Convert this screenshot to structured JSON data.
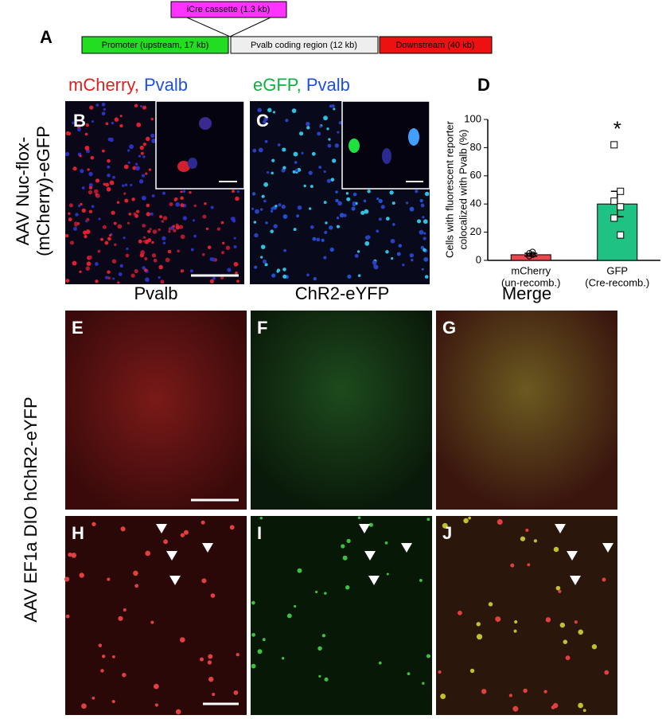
{
  "panel_a": {
    "label": "A",
    "cassette": "iCre cassette (1.3 kb)",
    "segments": [
      "Promoter (upstream, 17 kb)",
      "Pvalb coding region (12 kb)",
      "Downstream (40 kb)"
    ]
  },
  "row1": {
    "label_lines": [
      "AAV Nuc-flox-",
      "(mCherry)-eGFP"
    ],
    "panels": [
      {
        "label": "B",
        "title_a": "mCherry,",
        "title_b": "Pvalb"
      },
      {
        "label": "C",
        "title_a": "eGFP,",
        "title_b": "Pvalb"
      }
    ]
  },
  "row2": {
    "label": "AAV EF1a DIO hChR2-eYFP",
    "columns": [
      "Pvalb",
      "ChR2-eYFP",
      "Merge"
    ],
    "panels_top": [
      "E",
      "F",
      "G"
    ],
    "panels_bottom": [
      "H",
      "I",
      "J"
    ]
  },
  "chart_data": {
    "type": "bar",
    "label": "D",
    "ylabel_lines": [
      "Cells with fluorescent reporter",
      "colocalized with Pvalb (%)"
    ],
    "categories": [
      "mCherry",
      "GFP"
    ],
    "sublabels": [
      "(un-recomb.)",
      "(Cre-recomb.)"
    ],
    "values": [
      4,
      40
    ],
    "errors": [
      1,
      9
    ],
    "colors": [
      "#e8474f",
      "#1fc283"
    ],
    "points": [
      [
        3,
        4,
        5,
        6
      ],
      [
        82,
        49,
        42,
        38,
        30,
        18
      ]
    ],
    "annotation": "*",
    "ylim": [
      0,
      100
    ],
    "yticks": [
      0,
      20,
      40,
      60,
      80,
      100
    ]
  }
}
